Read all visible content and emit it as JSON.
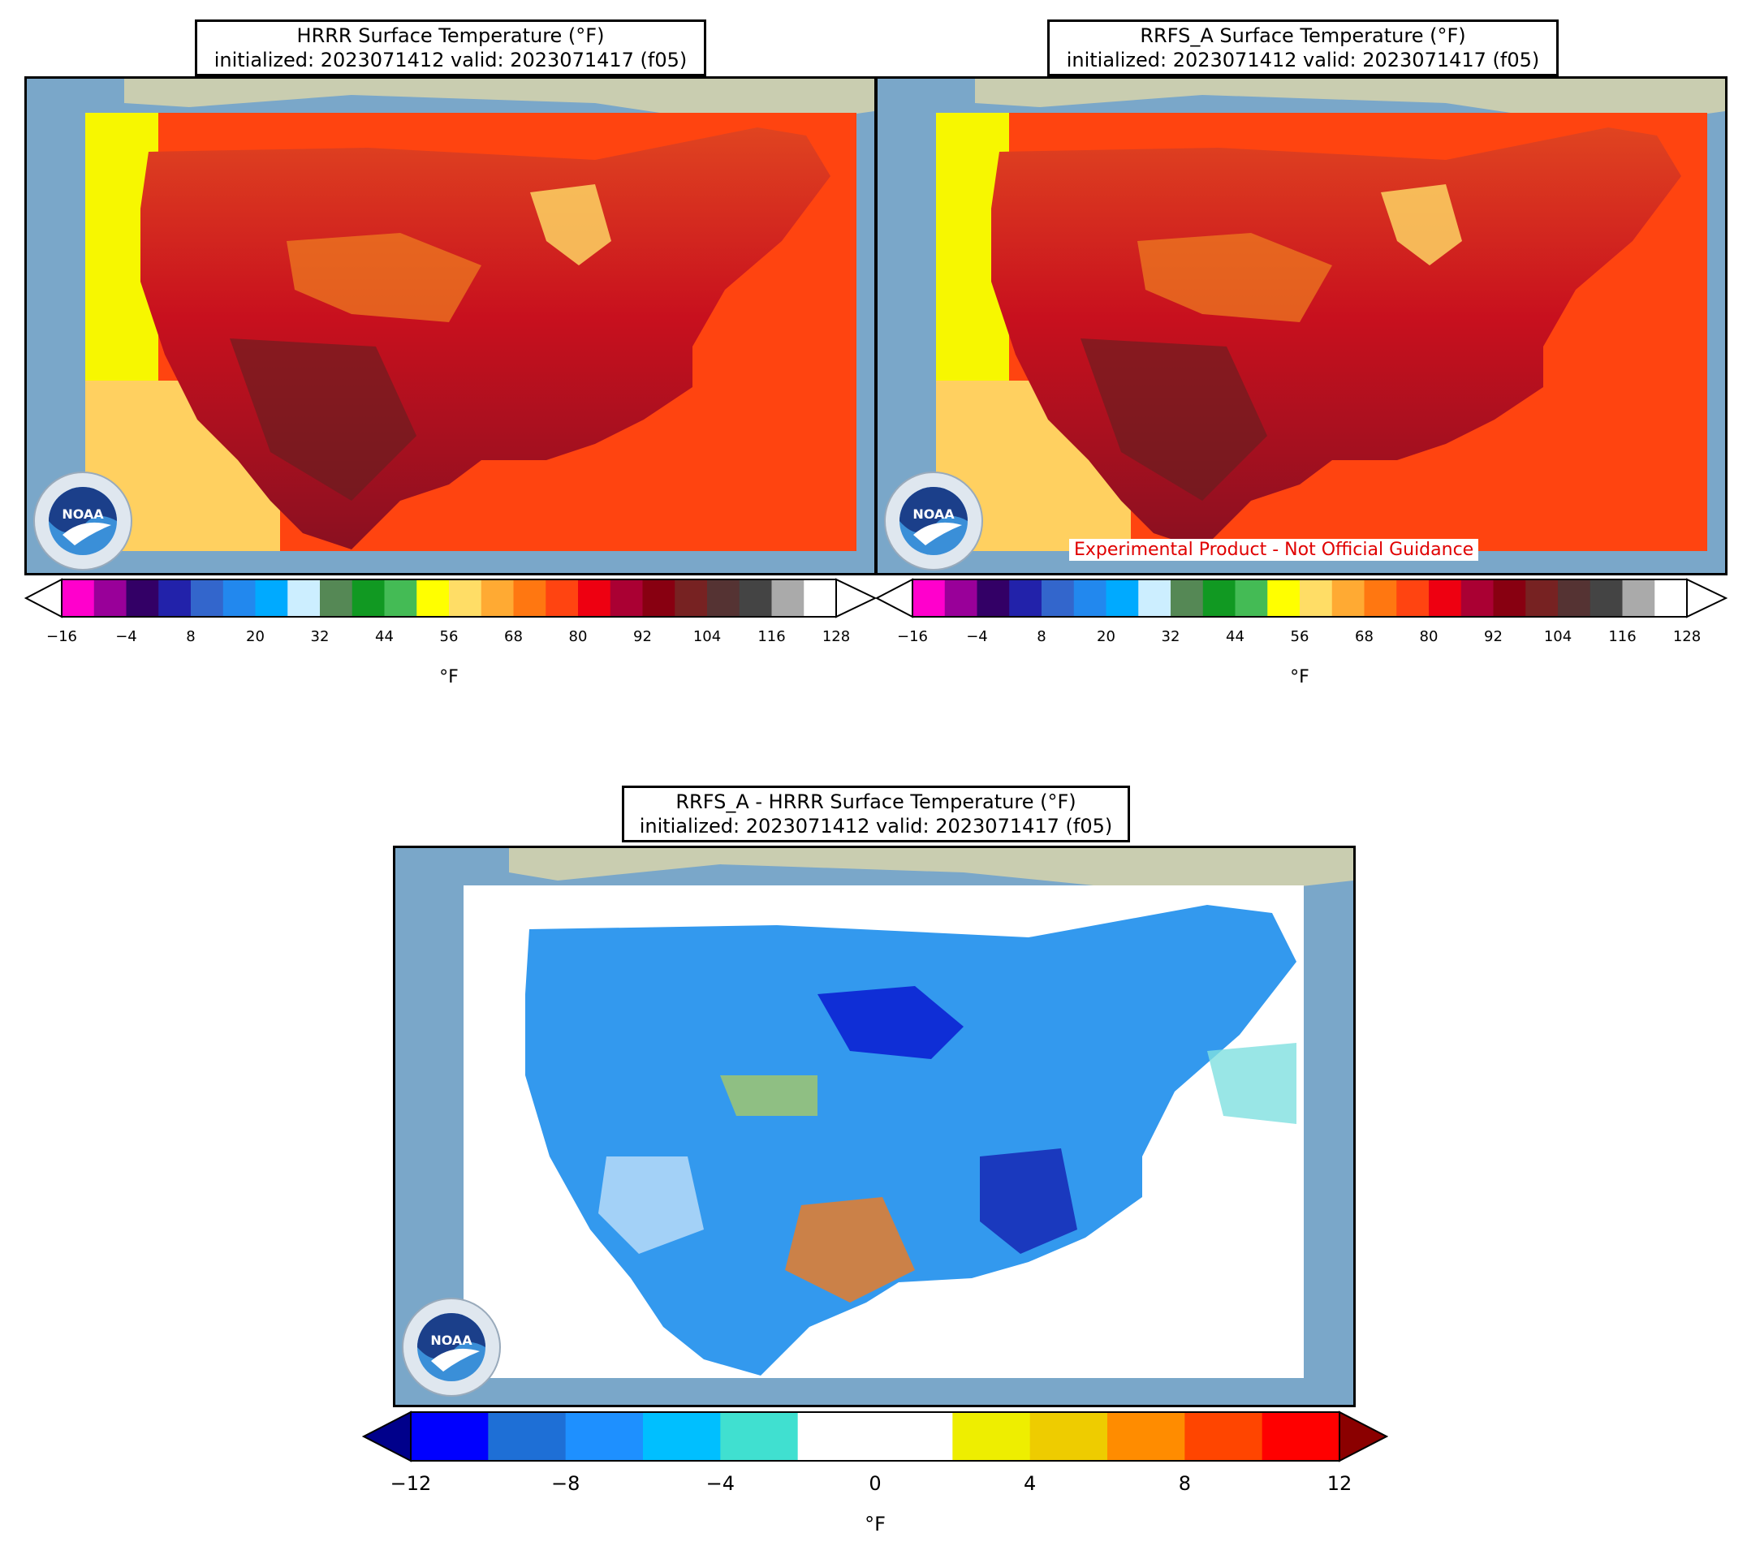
{
  "panels": {
    "hrrr": {
      "title_line1": "HRRR Surface Temperature (°F)",
      "title_line2": "initialized: 2023071412 valid: 2023071417 (f05)"
    },
    "rrfs": {
      "title_line1": "RRFS_A Surface Temperature (°F)",
      "title_line2": "initialized: 2023071412 valid: 2023071417 (f05)",
      "banner": "Experimental Product - Not Official Guidance"
    },
    "diff": {
      "title_line1": "RRFS_A - HRRR Surface Temperature (°F)",
      "title_line2": "initialized: 2023071412 valid: 2023071417 (f05)"
    }
  },
  "logo": {
    "text": "NOAA",
    "icon": "noaa-logo-icon"
  },
  "temp_colorbar": {
    "unit": "°F",
    "ticks": [
      "−16",
      "−4",
      "8",
      "20",
      "32",
      "44",
      "56",
      "68",
      "80",
      "92",
      "104",
      "116",
      "128"
    ],
    "bounds": [
      -16,
      128
    ],
    "colors": [
      "#ff00cc",
      "#990099",
      "#330066",
      "#2222aa",
      "#3366cc",
      "#2288ee",
      "#00aaff",
      "#cceeff",
      "#558855",
      "#119922",
      "#44bb55",
      "#ffff00",
      "#ffdd66",
      "#ffaa33",
      "#ff7711",
      "#ff4411",
      "#ee0011",
      "#aa0033",
      "#880011",
      "#772222",
      "#553333",
      "#444444",
      "#aaaaaa",
      "#ffffff"
    ],
    "extend": "both"
  },
  "diff_colorbar": {
    "unit": "°F",
    "ticks": [
      "−12",
      "−8",
      "−4",
      "0",
      "4",
      "8",
      "12"
    ],
    "bounds": [
      -12,
      12
    ],
    "colors": [
      "#0000ff",
      "#1e6fd6",
      "#1e90ff",
      "#00bfff",
      "#40e0d0",
      "#ffffff",
      "#ffffff",
      "#eeee00",
      "#eecc00",
      "#ff8c00",
      "#ff4500",
      "#ff0000"
    ],
    "under_color": "#00008b",
    "over_color": "#8b0000",
    "extend": "both"
  },
  "chart_data": [
    {
      "type": "heatmap",
      "title": "HRRR Surface Temperature (°F)",
      "colorbar_label": "°F",
      "range": [
        -16,
        128
      ]
    },
    {
      "type": "heatmap",
      "title": "RRFS_A Surface Temperature (°F)",
      "colorbar_label": "°F",
      "range": [
        -16,
        128
      ]
    },
    {
      "type": "heatmap",
      "title": "RRFS_A - HRRR Surface Temperature (°F)",
      "colorbar_label": "°F",
      "range": [
        -12,
        12
      ]
    }
  ]
}
